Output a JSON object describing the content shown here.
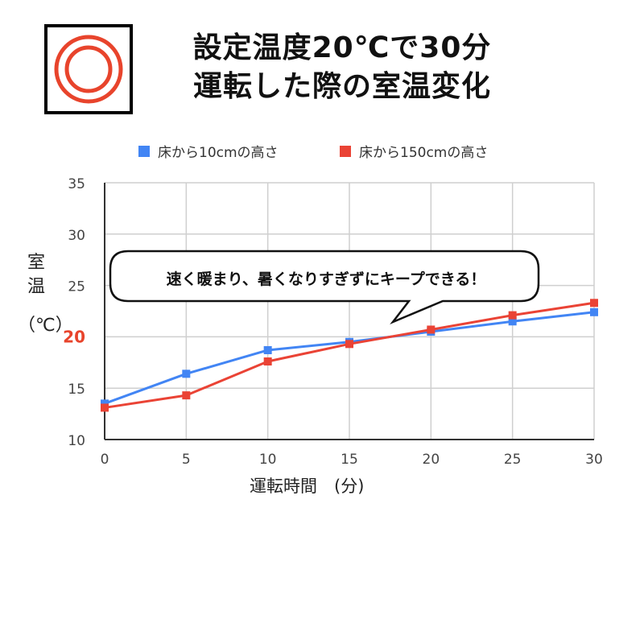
{
  "title": {
    "line1": "設定温度20℃で30分",
    "line2": "運転した際の室温変化"
  },
  "logo_icon": "heater-concentric-circles-icon",
  "callout": "速く暖まり、暑くなりすぎずにキープできる！",
  "y_axis_label": {
    "line1": "室",
    "line2": "温",
    "line3": "（℃）"
  },
  "x_axis_label": "運転時間　(分)",
  "colors": {
    "series_floor10": "#4285f4",
    "series_floor150": "#ea4335",
    "highlight_tick": "#e8442c",
    "logo_ring": "#e8442c"
  },
  "chart_data": {
    "type": "line",
    "xlabel": "運転時間　(分)",
    "ylabel": "室温（℃）",
    "x": [
      0,
      5,
      10,
      15,
      20,
      25,
      30
    ],
    "x_ticks": [
      "0",
      "5",
      "10",
      "15",
      "20",
      "25",
      "30"
    ],
    "y_ticks": [
      "10",
      "15",
      "20",
      "25",
      "30",
      "35"
    ],
    "highlighted_y_tick": "20",
    "xlim": [
      0,
      30
    ],
    "ylim": [
      10,
      35
    ],
    "grid": true,
    "legend_position": "top",
    "series": [
      {
        "name": "床から10cmの高さ",
        "values": [
          13.5,
          16.4,
          18.7,
          19.5,
          20.5,
          21.5,
          22.4
        ]
      },
      {
        "name": "床から150cmの高さ",
        "values": [
          13.1,
          14.3,
          17.6,
          19.3,
          20.7,
          22.1,
          23.3
        ]
      }
    ]
  }
}
